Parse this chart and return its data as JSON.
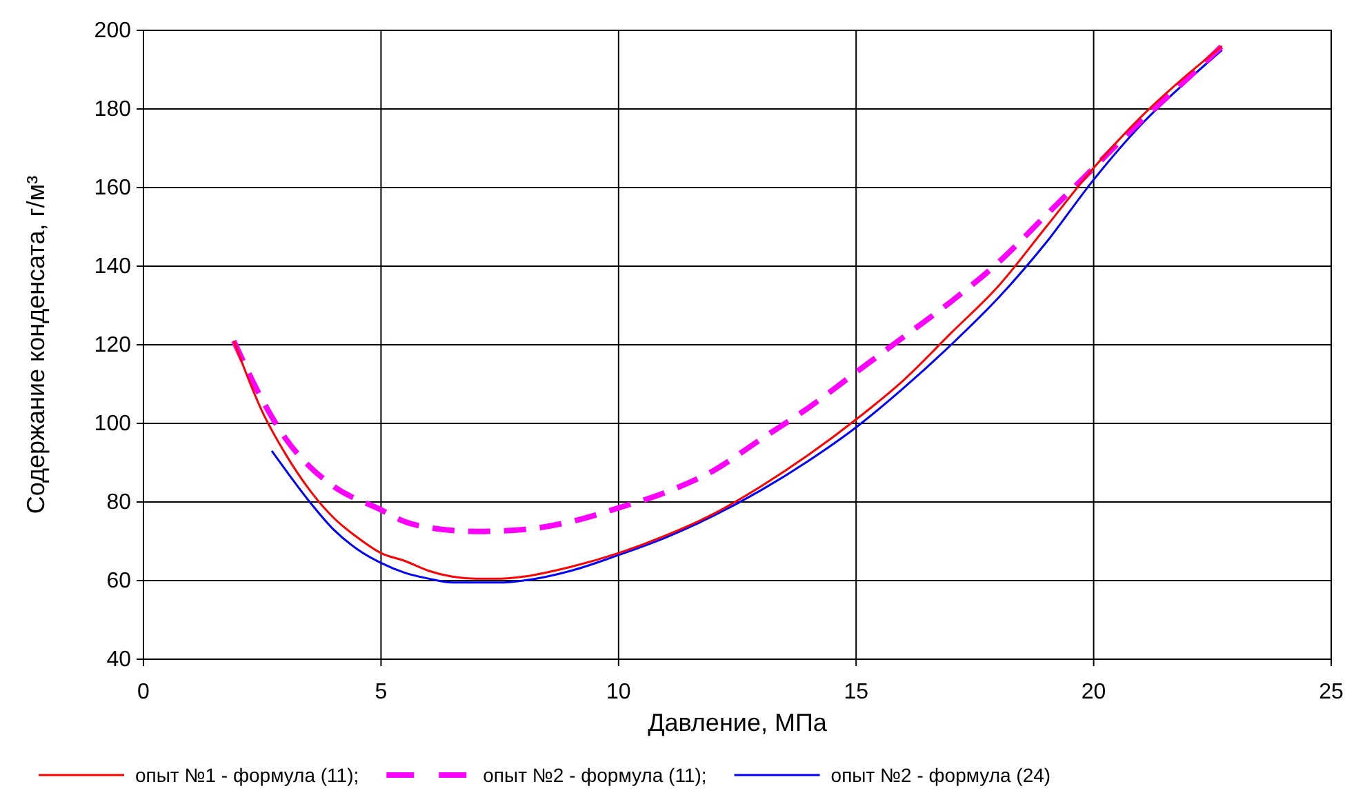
{
  "chart_data": {
    "type": "line",
    "xlabel": "Давление, МПа",
    "ylabel": "Содержание конденсата, г/м³",
    "xlim": [
      0,
      25
    ],
    "xticks": [
      0,
      5,
      10,
      15,
      20,
      25
    ],
    "ylim": [
      40,
      200
    ],
    "yticks": [
      40,
      60,
      80,
      100,
      120,
      140,
      160,
      180,
      200
    ],
    "grid": true,
    "legend": "bottom",
    "marker": "none",
    "series": [
      {
        "name": "опыт №1 - формула (11);",
        "color": "#ff0000",
        "line_style": "solid",
        "x": [
          1.9,
          2.5,
          3,
          3.5,
          4,
          4.5,
          5,
          5.5,
          6,
          6.5,
          7,
          7.5,
          8,
          9,
          10,
          11,
          12,
          13,
          14,
          15,
          16,
          17,
          18,
          19,
          20,
          21,
          22,
          22.7
        ],
        "values": [
          121,
          103,
          92,
          83,
          76,
          71,
          67,
          65,
          62.5,
          61,
          60.5,
          60.5,
          61,
          63.5,
          67,
          71.5,
          77,
          84,
          92,
          101,
          111,
          123,
          135,
          150,
          165,
          178,
          189,
          196
        ]
      },
      {
        "name": "опыт №2 - формула (11);",
        "color": "#ff00ff",
        "line_style": "dashed",
        "x": [
          1.9,
          2.5,
          3,
          3.5,
          4,
          5,
          5.5,
          6,
          7,
          8,
          9,
          10,
          11,
          12,
          13,
          14,
          15,
          16,
          17,
          18,
          19,
          20,
          21,
          22,
          22.7
        ],
        "values": [
          121,
          106,
          96,
          89,
          84,
          78,
          75,
          73.5,
          72.5,
          73,
          75,
          78.5,
          82.5,
          88,
          96,
          104,
          113,
          122,
          131,
          141,
          153,
          165,
          177,
          188,
          196
        ]
      },
      {
        "name": "опыт №2 - формула (24)",
        "color": "#0000ff",
        "line_style": "solid",
        "x": [
          2.7,
          3,
          3.5,
          4,
          4.5,
          5,
          5.5,
          6,
          6.5,
          7,
          7.5,
          8,
          9,
          10,
          11,
          12,
          13,
          14,
          15,
          16,
          17,
          18,
          19,
          20,
          21,
          22,
          22.7
        ],
        "values": [
          93,
          88,
          80,
          73,
          68,
          64.5,
          62,
          60.5,
          59.5,
          59.5,
          59.5,
          60,
          62.5,
          66.5,
          71,
          76.5,
          83,
          90.5,
          99,
          109,
          120,
          132,
          146,
          162,
          176,
          187.5,
          195
        ]
      }
    ]
  }
}
